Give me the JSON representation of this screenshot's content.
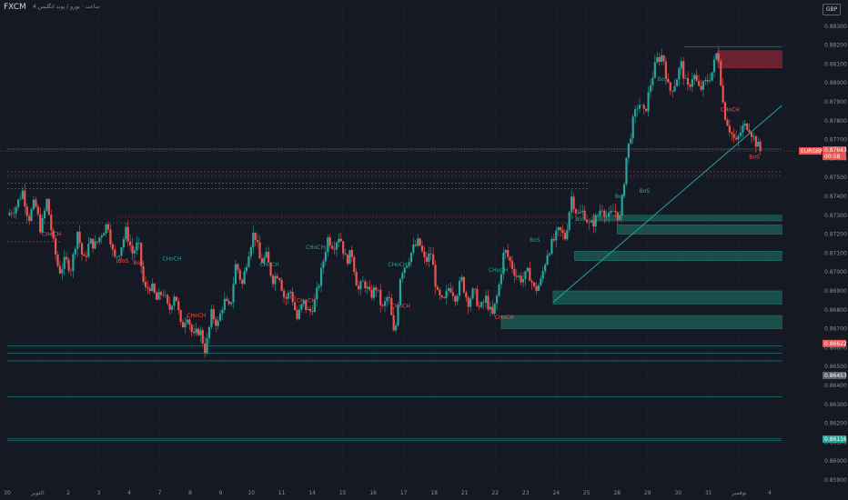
{
  "header": {
    "symbol": "FXCM",
    "subtitle": "4 ساعت · یورو / پوند انگلیس",
    "currency_button": "GBP"
  },
  "colors": {
    "background": "#151924",
    "up": "#26a69a",
    "down": "#ef5350",
    "structure_line": "#3f7fd6",
    "zone_fill": "#1f7a6b",
    "supply_fill": "#b02a3a",
    "grid": "#1e2330"
  },
  "chart_data": {
    "type": "candlestick",
    "symbol": "EURGBP",
    "ylim": [
      0.859,
      0.884
    ],
    "y_ticks": [
      0.883,
      0.882,
      0.881,
      0.88,
      0.879,
      0.878,
      0.877,
      0.876,
      0.875,
      0.874,
      0.873,
      0.872,
      0.871,
      0.87,
      0.869,
      0.868,
      0.867,
      0.866,
      0.865,
      0.864,
      0.863,
      0.862,
      0.861,
      0.86,
      0.859
    ],
    "y_tick_labels": [
      "0.88300",
      "0.88200",
      "0.88100",
      "0.88000",
      "0.87900",
      "0.87800",
      "0.87700",
      "0.87600",
      "0.87500",
      "0.87400",
      "0.87300",
      "0.87200",
      "0.87100",
      "0.87000",
      "0.86900",
      "0.86800",
      "0.86700",
      "0.86600",
      "0.86500",
      "0.86400",
      "0.86300",
      "0.86200",
      "0.86100",
      "0.86000",
      "0.85900"
    ],
    "x_ticks": [
      {
        "label": "30",
        "t": 0
      },
      {
        "label": "اکتوبر",
        "t": 1
      },
      {
        "label": "2",
        "t": 2
      },
      {
        "label": "3",
        "t": 3
      },
      {
        "label": "4",
        "t": 4
      },
      {
        "label": "7",
        "t": 5
      },
      {
        "label": "8",
        "t": 6
      },
      {
        "label": "9",
        "t": 7
      },
      {
        "label": "10",
        "t": 8
      },
      {
        "label": "11",
        "t": 9
      },
      {
        "label": "14",
        "t": 10
      },
      {
        "label": "15",
        "t": 11
      },
      {
        "label": "16",
        "t": 12
      },
      {
        "label": "17",
        "t": 13
      },
      {
        "label": "18",
        "t": 14
      },
      {
        "label": "21",
        "t": 15
      },
      {
        "label": "22",
        "t": 16
      },
      {
        "label": "23",
        "t": 17
      },
      {
        "label": "24",
        "t": 18
      },
      {
        "label": "25",
        "t": 19
      },
      {
        "label": "28",
        "t": 20
      },
      {
        "label": "29",
        "t": 21
      },
      {
        "label": "30",
        "t": 22
      },
      {
        "label": "31",
        "t": 23
      },
      {
        "label": "نوفمبر",
        "t": 24
      },
      {
        "label": "4",
        "t": 25
      }
    ],
    "close_path": [
      [
        0.0,
        0.873
      ],
      [
        0.3,
        0.8735
      ],
      [
        0.5,
        0.8743
      ],
      [
        0.7,
        0.8728
      ],
      [
        0.9,
        0.8737
      ],
      [
        1.1,
        0.8722
      ],
      [
        1.3,
        0.8738
      ],
      [
        1.5,
        0.8716
      ],
      [
        1.7,
        0.87
      ],
      [
        1.9,
        0.8706
      ],
      [
        2.1,
        0.8702
      ],
      [
        2.3,
        0.8722
      ],
      [
        2.5,
        0.8705
      ],
      [
        2.7,
        0.8716
      ],
      [
        2.9,
        0.8714
      ],
      [
        3.1,
        0.8721
      ],
      [
        3.3,
        0.8726
      ],
      [
        3.5,
        0.8706
      ],
      [
        3.7,
        0.8712
      ],
      [
        3.9,
        0.8722
      ],
      [
        4.1,
        0.871
      ],
      [
        4.3,
        0.8715
      ],
      [
        4.5,
        0.869
      ],
      [
        4.7,
        0.8693
      ],
      [
        4.9,
        0.8685
      ],
      [
        5.1,
        0.869
      ],
      [
        5.3,
        0.8679
      ],
      [
        5.5,
        0.869
      ],
      [
        5.7,
        0.867
      ],
      [
        5.9,
        0.8678
      ],
      [
        6.1,
        0.8665
      ],
      [
        6.3,
        0.867
      ],
      [
        6.5,
        0.8658
      ],
      [
        6.7,
        0.8678
      ],
      [
        6.9,
        0.8672
      ],
      [
        7.1,
        0.8685
      ],
      [
        7.3,
        0.868
      ],
      [
        7.5,
        0.8705
      ],
      [
        7.7,
        0.8693
      ],
      [
        7.9,
        0.871
      ],
      [
        8.1,
        0.8722
      ],
      [
        8.3,
        0.8705
      ],
      [
        8.5,
        0.8708
      ],
      [
        8.7,
        0.8696
      ],
      [
        8.9,
        0.87
      ],
      [
        9.1,
        0.8685
      ],
      [
        9.3,
        0.869
      ],
      [
        9.5,
        0.8675
      ],
      [
        9.7,
        0.8684
      ],
      [
        9.9,
        0.8678
      ],
      [
        10.1,
        0.8685
      ],
      [
        10.3,
        0.87
      ],
      [
        10.5,
        0.8718
      ],
      [
        10.7,
        0.8714
      ],
      [
        10.9,
        0.872
      ],
      [
        11.1,
        0.8706
      ],
      [
        11.3,
        0.871
      ],
      [
        11.5,
        0.869
      ],
      [
        11.7,
        0.8695
      ],
      [
        11.9,
        0.8687
      ],
      [
        12.1,
        0.8692
      ],
      [
        12.3,
        0.868
      ],
      [
        12.5,
        0.8688
      ],
      [
        12.7,
        0.8664
      ],
      [
        12.9,
        0.87
      ],
      [
        13.1,
        0.8705
      ],
      [
        13.3,
        0.8712
      ],
      [
        13.5,
        0.8716
      ],
      [
        13.7,
        0.8705
      ],
      [
        13.9,
        0.871
      ],
      [
        14.1,
        0.8688
      ],
      [
        14.3,
        0.8683
      ],
      [
        14.5,
        0.8693
      ],
      [
        14.7,
        0.8687
      ],
      [
        14.9,
        0.8696
      ],
      [
        15.1,
        0.8684
      ],
      [
        15.3,
        0.869
      ],
      [
        15.5,
        0.868
      ],
      [
        15.7,
        0.8686
      ],
      [
        15.9,
        0.8676
      ],
      [
        16.1,
        0.869
      ],
      [
        16.3,
        0.8712
      ],
      [
        16.5,
        0.8705
      ],
      [
        16.7,
        0.8698
      ],
      [
        16.9,
        0.8696
      ],
      [
        17.1,
        0.87
      ],
      [
        17.3,
        0.869
      ],
      [
        17.5,
        0.8695
      ],
      [
        17.7,
        0.871
      ],
      [
        17.9,
        0.8716
      ],
      [
        18.1,
        0.8722
      ],
      [
        18.3,
        0.8718
      ],
      [
        18.5,
        0.874
      ],
      [
        18.7,
        0.873
      ],
      [
        18.9,
        0.8732
      ],
      [
        19.1,
        0.8724
      ],
      [
        19.3,
        0.8728
      ],
      [
        19.5,
        0.8735
      ],
      [
        19.7,
        0.8728
      ],
      [
        19.9,
        0.8733
      ],
      [
        20.1,
        0.8728
      ],
      [
        20.3,
        0.876
      ],
      [
        20.5,
        0.8778
      ],
      [
        20.7,
        0.879
      ],
      [
        20.9,
        0.8783
      ],
      [
        21.1,
        0.88
      ],
      [
        21.3,
        0.8812
      ],
      [
        21.5,
        0.8815
      ],
      [
        21.7,
        0.8795
      ],
      [
        21.9,
        0.88
      ],
      [
        22.1,
        0.881
      ],
      [
        22.3,
        0.8796
      ],
      [
        22.5,
        0.8805
      ],
      [
        22.7,
        0.8796
      ],
      [
        22.9,
        0.88
      ],
      [
        23.1,
        0.8805
      ],
      [
        23.3,
        0.8818
      ],
      [
        23.5,
        0.8785
      ],
      [
        23.7,
        0.8775
      ],
      [
        23.9,
        0.8768
      ],
      [
        24.1,
        0.8776
      ],
      [
        24.3,
        0.8778
      ],
      [
        24.5,
        0.877
      ],
      [
        24.7,
        0.8764
      ]
    ],
    "current_price": "0.87643",
    "current_price_symbol": "EURGBP",
    "countdown": "00:58",
    "price_labels": [
      {
        "value": "0.86622",
        "y": 0.86622,
        "color": "#ef5350"
      },
      {
        "value": "0.86453",
        "y": 0.86453,
        "color": "#5d606b"
      },
      {
        "value": "0.86116",
        "y": 0.86116,
        "color": "#26a69a"
      }
    ],
    "structure_labels": [
      {
        "text": "CHoCH",
        "t": 1.45,
        "y": 0.8719,
        "color": "#ef5350"
      },
      {
        "text": "BoS",
        "t": 3.8,
        "y": 0.8705,
        "color": "#ef5350"
      },
      {
        "text": "BoS",
        "t": 4.3,
        "y": 0.8704,
        "color": "#ef5350"
      },
      {
        "text": "CHoCH",
        "t": 5.4,
        "y": 0.8706,
        "color": "#26a69a"
      },
      {
        "text": "CHoCH",
        "t": 6.2,
        "y": 0.8676,
        "color": "#ef5350"
      },
      {
        "text": "CHoCH",
        "t": 8.6,
        "y": 0.8703,
        "color": "#26a69a"
      },
      {
        "text": "CHoCH",
        "t": 10.1,
        "y": 0.8712,
        "color": "#26a69a"
      },
      {
        "text": "CHoCH",
        "t": 9.8,
        "y": 0.8684,
        "color": "#ef5350"
      },
      {
        "text": "CHoCH",
        "t": 12.8,
        "y": 0.8703,
        "color": "#26a69a"
      },
      {
        "text": "CHoCH",
        "t": 12.9,
        "y": 0.8681,
        "color": "#ef5350"
      },
      {
        "text": "CHoCH",
        "t": 16.1,
        "y": 0.87,
        "color": "#26a69a"
      },
      {
        "text": "CHoCH",
        "t": 16.3,
        "y": 0.8675,
        "color": "#ef5350"
      },
      {
        "text": "BoS",
        "t": 17.3,
        "y": 0.8716,
        "color": "#26a69a"
      },
      {
        "text": "BoS",
        "t": 18.8,
        "y": 0.8727,
        "color": "#26a69a"
      },
      {
        "text": "BoS",
        "t": 20.1,
        "y": 0.8739,
        "color": "#26a69a"
      },
      {
        "text": "BoS",
        "t": 20.9,
        "y": 0.8742,
        "color": "#26a69a"
      },
      {
        "text": "BoS",
        "t": 21.5,
        "y": 0.8801,
        "color": "#26a69a"
      },
      {
        "text": "CHoCH",
        "t": 23.7,
        "y": 0.8785,
        "color": "#ef5350"
      },
      {
        "text": "BoS",
        "t": 24.5,
        "y": 0.876,
        "color": "#ef5350"
      }
    ],
    "zones": [
      {
        "t0": 19.2,
        "t1": 25.4,
        "y0": 0.8727,
        "y1": 0.873,
        "type": "demand"
      },
      {
        "t0": 20.0,
        "t1": 25.4,
        "y0": 0.872,
        "y1": 0.8725,
        "type": "demand"
      },
      {
        "t0": 18.6,
        "t1": 25.4,
        "y0": 0.8706,
        "y1": 0.8711,
        "type": "demand"
      },
      {
        "t0": 17.9,
        "t1": 25.4,
        "y0": 0.8683,
        "y1": 0.869,
        "type": "demand"
      },
      {
        "t0": 16.2,
        "t1": 25.4,
        "y0": 0.867,
        "y1": 0.8677,
        "type": "demand"
      },
      {
        "t0": 23.3,
        "t1": 25.4,
        "y0": 0.8808,
        "y1": 0.8817,
        "type": "supply"
      }
    ],
    "horizontal_lines": [
      {
        "y": 0.8765,
        "t0": 0,
        "t1": 25.4,
        "color": "#26a69a",
        "dash": false
      },
      {
        "y": 0.8753,
        "t0": 0,
        "t1": 25.4,
        "color": "#ef5350",
        "dash": true
      },
      {
        "y": 0.8751,
        "t0": 0,
        "t1": 25.4,
        "color": "#ef5350",
        "dash": true
      },
      {
        "y": 0.8747,
        "t0": 0,
        "t1": 19.1,
        "color": "#ef5350",
        "dash": true
      },
      {
        "y": 0.8744,
        "t0": 0,
        "t1": 19.1,
        "color": "#ef5350",
        "dash": true
      },
      {
        "y": 0.8729,
        "t0": 3.6,
        "t1": 19.0,
        "color": "#ef5350",
        "dash": true
      },
      {
        "y": 0.8726,
        "t0": 0,
        "t1": 19.0,
        "color": "#ef5350",
        "dash": true
      },
      {
        "y": 0.8716,
        "t0": 0,
        "t1": 1.8,
        "color": "#ef5350",
        "dash": true
      },
      {
        "y": 0.8661,
        "t0": 0,
        "t1": 25.4,
        "color": "#26a69a",
        "dash": false
      },
      {
        "y": 0.8657,
        "t0": 0,
        "t1": 25.4,
        "color": "#26a69a",
        "dash": false
      },
      {
        "y": 0.8653,
        "t0": 0,
        "t1": 25.4,
        "color": "#26a69a",
        "dash": false
      },
      {
        "y": 0.8634,
        "t0": 0,
        "t1": 25.4,
        "color": "#26a69a",
        "dash": false
      },
      {
        "y": 0.8612,
        "t0": 0,
        "t1": 25.4,
        "color": "#26a69a",
        "dash": false
      },
      {
        "y": 0.8611,
        "t0": 0,
        "t1": 25.4,
        "color": "#26a69a",
        "dash": false
      },
      {
        "y": 0.8819,
        "t0": 22.2,
        "t1": 25.4,
        "color": "#ef5350",
        "dash": false
      }
    ],
    "trendline": {
      "t0": 17.9,
      "y0": 0.8684,
      "t1": 25.4,
      "y1": 0.8788
    }
  }
}
